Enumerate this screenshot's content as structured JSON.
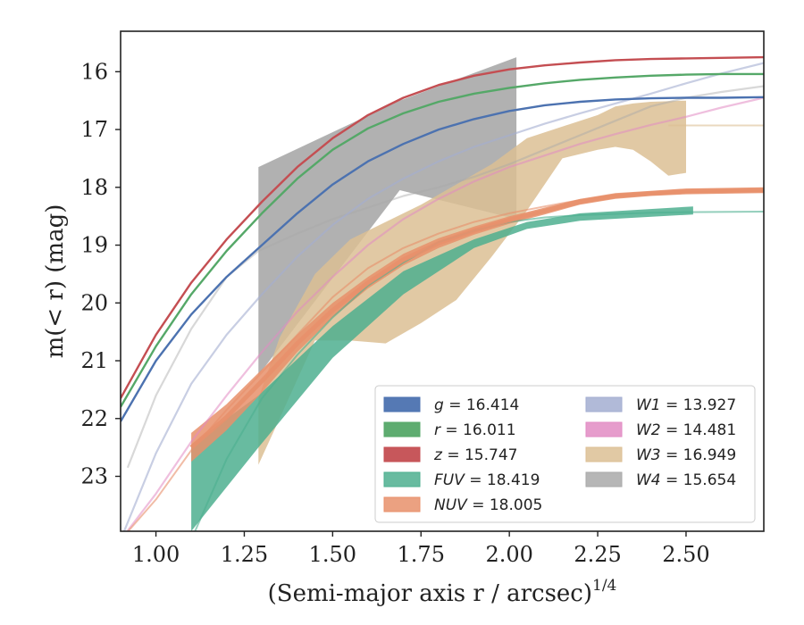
{
  "chart_data": {
    "type": "line",
    "xlabel": "(Semi-major axis r / arcsec)",
    "xlabel_exponent": "1/4",
    "ylabel": "m(< r) (mag)",
    "xlim": [
      0.9,
      2.72
    ],
    "ylim": [
      23.95,
      15.3
    ],
    "y_inverted": true,
    "x_ticks": [
      "1.00",
      "1.25",
      "1.50",
      "1.75",
      "2.00",
      "2.25",
      "2.50"
    ],
    "y_ticks": [
      "16",
      "17",
      "18",
      "19",
      "20",
      "21",
      "22",
      "23"
    ],
    "grid": false,
    "legend_placement": "lower-right",
    "series": [
      {
        "name": "g = 16.414",
        "band": "g",
        "value": "16.414",
        "color": "#4c72b0",
        "curve": {
          "x": [
            0.9,
            1.0,
            1.1,
            1.2,
            1.3,
            1.4,
            1.5,
            1.6,
            1.7,
            1.8,
            1.9,
            2.0,
            2.1,
            2.2,
            2.3,
            2.4,
            2.5,
            2.6,
            2.72
          ],
          "y": [
            22.05,
            21.0,
            20.2,
            19.55,
            19.0,
            18.45,
            17.95,
            17.55,
            17.25,
            17.0,
            16.82,
            16.68,
            16.58,
            16.52,
            16.48,
            16.46,
            16.45,
            16.45,
            16.44
          ]
        }
      },
      {
        "name": "r = 16.011",
        "band": "r",
        "value": "16.011",
        "color": "#55a868",
        "curve": {
          "x": [
            0.9,
            1.0,
            1.1,
            1.2,
            1.3,
            1.4,
            1.5,
            1.6,
            1.7,
            1.8,
            1.9,
            2.0,
            2.1,
            2.2,
            2.3,
            2.4,
            2.5,
            2.6,
            2.72
          ],
          "y": [
            21.8,
            20.75,
            19.85,
            19.1,
            18.45,
            17.85,
            17.35,
            16.98,
            16.72,
            16.52,
            16.38,
            16.28,
            16.2,
            16.14,
            16.1,
            16.07,
            16.05,
            16.04,
            16.04
          ]
        }
      },
      {
        "name": "z = 15.747",
        "band": "z",
        "value": "15.747",
        "color": "#c44e52",
        "curve": {
          "x": [
            0.9,
            1.0,
            1.1,
            1.2,
            1.3,
            1.4,
            1.5,
            1.6,
            1.7,
            1.8,
            1.9,
            2.0,
            2.1,
            2.2,
            2.3,
            2.4,
            2.5,
            2.6,
            2.72
          ],
          "y": [
            21.65,
            20.55,
            19.65,
            18.9,
            18.25,
            17.65,
            17.15,
            16.75,
            16.45,
            16.23,
            16.07,
            15.96,
            15.89,
            15.84,
            15.8,
            15.78,
            15.77,
            15.76,
            15.75
          ]
        }
      },
      {
        "name": "FUV = 18.419",
        "band": "FUV",
        "value": "18.419",
        "color": "#4daf8f",
        "curve": {
          "x": [
            1.1,
            1.2,
            1.3,
            1.4,
            1.5,
            1.6,
            1.7,
            1.8,
            1.9,
            2.0,
            2.1,
            2.2,
            2.3,
            2.4,
            2.5,
            2.72
          ],
          "y": [
            24.1,
            22.7,
            21.65,
            20.9,
            20.25,
            19.7,
            19.3,
            18.95,
            18.75,
            18.6,
            18.52,
            18.48,
            18.46,
            18.44,
            18.43,
            18.42
          ]
        },
        "band_upper": {
          "x": [
            1.1,
            1.29,
            1.5,
            1.7,
            1.9,
            2.05,
            2.2,
            2.52
          ],
          "y": [
            22.45,
            21.6,
            20.4,
            19.45,
            18.9,
            18.6,
            18.45,
            18.33
          ]
        },
        "band_lower": {
          "x": [
            1.1,
            1.29,
            1.5,
            1.7,
            1.9,
            2.05,
            2.2,
            2.52
          ],
          "y": [
            23.95,
            22.5,
            20.95,
            19.85,
            19.05,
            18.72,
            18.58,
            18.47
          ]
        }
      },
      {
        "name": "NUV = 18.005",
        "band": "NUV",
        "value": "18.005",
        "color": "#e8906b",
        "curve": {
          "x": [
            0.9,
            1.0,
            1.1,
            1.2,
            1.3,
            1.4,
            1.5,
            1.6,
            1.7,
            1.8,
            1.9,
            2.0,
            2.1,
            2.2,
            2.3,
            2.4,
            2.5,
            2.6,
            2.72
          ],
          "y": [
            24.1,
            23.4,
            22.55,
            21.85,
            21.2,
            20.55,
            19.9,
            19.4,
            19.05,
            18.8,
            18.6,
            18.45,
            18.33,
            18.22,
            18.14,
            18.1,
            18.08,
            18.07,
            18.06
          ]
        },
        "band_upper": {
          "x": [
            1.1,
            1.2,
            1.3,
            1.4,
            1.5,
            1.6,
            1.7,
            1.8,
            1.9,
            2.0,
            2.1,
            2.2,
            2.3,
            2.4,
            2.5,
            2.72
          ],
          "y": [
            22.25,
            21.75,
            21.15,
            20.55,
            20.0,
            19.55,
            19.15,
            18.88,
            18.68,
            18.5,
            18.35,
            18.2,
            18.1,
            18.06,
            18.02,
            18.0
          ]
        },
        "band_lower": {
          "x": [
            1.1,
            1.2,
            1.3,
            1.4,
            1.5,
            1.6,
            1.7,
            1.8,
            1.9,
            2.0,
            2.1,
            2.2,
            2.3,
            2.4,
            2.5,
            2.72
          ],
          "y": [
            22.75,
            22.2,
            21.55,
            20.85,
            20.25,
            19.75,
            19.35,
            19.05,
            18.82,
            18.63,
            18.47,
            18.3,
            18.2,
            18.15,
            18.12,
            18.1
          ]
        }
      },
      {
        "name": "W1 = 13.927",
        "band": "W1",
        "value": "13.927",
        "color": "#a3aed1",
        "curve": {
          "x": [
            0.9,
            1.0,
            1.1,
            1.2,
            1.3,
            1.4,
            1.5,
            1.6,
            1.7,
            1.8,
            1.9,
            2.0,
            2.1,
            2.2,
            2.3,
            2.4,
            2.5,
            2.6,
            2.72
          ],
          "y": [
            24.1,
            22.6,
            21.4,
            20.55,
            19.85,
            19.2,
            18.65,
            18.2,
            17.85,
            17.55,
            17.3,
            17.1,
            16.9,
            16.72,
            16.55,
            16.38,
            16.2,
            16.03,
            15.85
          ]
        }
      },
      {
        "name": "W2 = 14.481",
        "band": "W2",
        "value": "14.481",
        "color": "#e28bc3",
        "curve": {
          "x": [
            0.9,
            1.0,
            1.1,
            1.2,
            1.3,
            1.4,
            1.5,
            1.6,
            1.7,
            1.8,
            1.9,
            2.0,
            2.1,
            2.2,
            2.3,
            2.4,
            2.5,
            2.6,
            2.72
          ],
          "y": [
            24.1,
            23.3,
            22.4,
            21.6,
            20.85,
            20.15,
            19.55,
            19.0,
            18.55,
            18.2,
            17.9,
            17.65,
            17.45,
            17.25,
            17.08,
            16.92,
            16.78,
            16.62,
            16.45
          ]
        }
      },
      {
        "name": "W3 = 16.949",
        "band": "W3",
        "value": "16.949",
        "color": "#dcbf94",
        "curve": {
          "x": [
            2.45,
            2.72
          ],
          "y": [
            16.93,
            16.93
          ]
        },
        "band_upper": {
          "x": [
            1.29,
            1.35,
            1.45,
            1.55,
            1.65,
            1.75,
            1.85,
            1.95,
            2.05,
            2.15,
            2.25,
            2.3,
            2.35,
            2.4,
            2.5
          ],
          "y": [
            21.65,
            20.6,
            19.5,
            18.9,
            18.6,
            18.3,
            17.95,
            17.6,
            17.15,
            16.95,
            16.75,
            16.6,
            16.55,
            16.52,
            16.5
          ]
        },
        "band_lower": {
          "x": [
            1.29,
            1.35,
            1.45,
            1.55,
            1.65,
            1.75,
            1.85,
            1.95,
            2.05,
            2.15,
            2.25,
            2.3,
            2.35,
            2.4,
            2.45,
            2.5
          ],
          "y": [
            22.8,
            22.0,
            20.65,
            20.65,
            20.7,
            20.35,
            19.95,
            19.2,
            18.4,
            17.5,
            17.35,
            17.3,
            17.35,
            17.55,
            17.8,
            17.75
          ]
        }
      },
      {
        "name": "W4 = 15.654",
        "band": "W4",
        "value": "15.654",
        "color": "#a9a9a9",
        "curve": {
          "x": [
            0.92,
            1.0,
            1.1,
            1.2,
            1.29,
            1.4,
            1.5,
            1.6,
            1.7,
            1.8,
            1.9,
            2.0,
            2.1,
            2.2,
            2.3,
            2.4,
            2.5,
            2.6,
            2.72
          ],
          "y": [
            22.85,
            21.6,
            20.45,
            19.55,
            19.1,
            18.8,
            18.55,
            18.35,
            18.15,
            18.0,
            17.82,
            17.6,
            17.35,
            17.1,
            16.85,
            16.6,
            16.45,
            16.35,
            16.25
          ]
        },
        "band_upper": {
          "x": [
            1.29,
            1.69,
            2.02
          ],
          "y": [
            17.65,
            16.5,
            15.75
          ]
        },
        "band_lower": {
          "x": [
            1.29,
            1.69,
            2.02
          ],
          "y": [
            21.25,
            18.05,
            18.55
          ]
        }
      }
    ]
  }
}
